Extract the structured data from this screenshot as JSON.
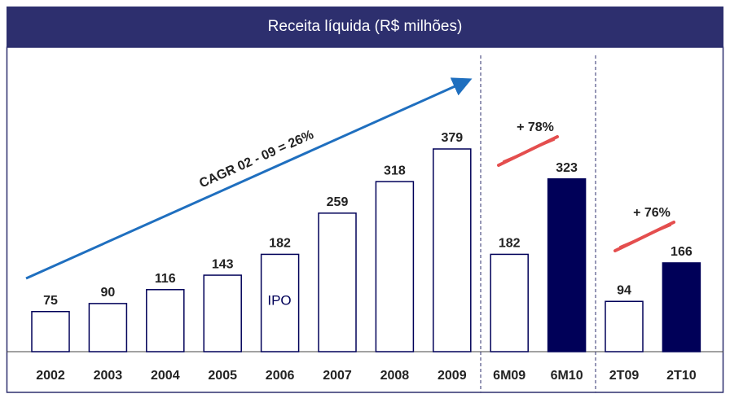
{
  "chart_data": {
    "type": "bar",
    "title": "Receita líquida (R$ milhões)",
    "categories": [
      "2002",
      "2003",
      "2004",
      "2005",
      "2006",
      "2007",
      "2008",
      "2009",
      "6M09",
      "6M10",
      "2T09",
      "2T10"
    ],
    "values": [
      75,
      90,
      116,
      143,
      182,
      259,
      318,
      379,
      182,
      323,
      94,
      166
    ],
    "colors": [
      "#ffffff",
      "#ffffff",
      "#ffffff",
      "#ffffff",
      "#ffffff",
      "#ffffff",
      "#ffffff",
      "#ffffff",
      "#ffffff",
      "#000058",
      "#ffffff",
      "#000058"
    ],
    "edge_color": "#000058",
    "annotations": {
      "cagr": "CAGR 02 - 09 =   26%",
      "growth_6m": "+ 78%",
      "growth_2t": "+ 76%",
      "ipo": "IPO"
    }
  }
}
